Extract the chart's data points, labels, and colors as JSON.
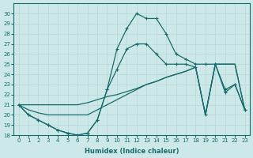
{
  "xlabel": "Humidex (Indice chaleur)",
  "ylabel": "",
  "background_color": "#cce8e8",
  "line_color": "#1a6b6b",
  "xlim": [
    -0.5,
    23.5
  ],
  "ylim": [
    18,
    31
  ],
  "yticks": [
    18,
    19,
    20,
    21,
    22,
    23,
    24,
    25,
    26,
    27,
    28,
    29,
    30
  ],
  "xticks": [
    0,
    1,
    2,
    3,
    4,
    5,
    6,
    7,
    8,
    9,
    10,
    11,
    12,
    13,
    14,
    15,
    16,
    17,
    18,
    19,
    20,
    21,
    22,
    23
  ],
  "line1": {
    "x": [
      0,
      1,
      2,
      3,
      4,
      5,
      6,
      7,
      8,
      9,
      10,
      11,
      12,
      13,
      14,
      15,
      16,
      17,
      18,
      19,
      20,
      21,
      22,
      23
    ],
    "y": [
      21,
      20,
      19.5,
      19,
      18.5,
      18.2,
      18,
      18.2,
      19.5,
      22.5,
      26.5,
      28.5,
      30,
      29.5,
      29.5,
      28,
      26,
      25.5,
      25,
      25,
      25,
      22.5,
      23,
      20.5
    ]
  },
  "line2": {
    "x": [
      0,
      1,
      2,
      3,
      4,
      5,
      6,
      7,
      8,
      9,
      10,
      11,
      12,
      13,
      14,
      15,
      16,
      17,
      18,
      19,
      20,
      21,
      22,
      23
    ],
    "y": [
      21,
      20,
      19.5,
      19,
      18.5,
      18.2,
      18,
      18.2,
      19.5,
      22.5,
      24.5,
      26.5,
      27,
      27,
      26,
      25,
      25,
      25,
      24.7,
      20,
      25,
      22.2,
      23,
      20.5
    ]
  },
  "line3": {
    "x": [
      0,
      1,
      2,
      3,
      4,
      5,
      6,
      7,
      8,
      9,
      10,
      11,
      12,
      13,
      14,
      15,
      16,
      17,
      18,
      19,
      20,
      21,
      22,
      23
    ],
    "y": [
      21,
      21,
      21,
      21,
      21,
      21,
      21,
      21.2,
      21.5,
      21.8,
      22,
      22.3,
      22.6,
      23,
      23.3,
      23.7,
      24,
      24.3,
      24.7,
      20,
      25,
      25,
      25,
      20.5
    ]
  },
  "line4": {
    "x": [
      0,
      1,
      2,
      3,
      4,
      5,
      6,
      7,
      8,
      9,
      10,
      11,
      12,
      13,
      14,
      15,
      16,
      17,
      18,
      19,
      20,
      21,
      22,
      23
    ],
    "y": [
      21,
      20.5,
      20.2,
      20,
      20,
      20,
      20,
      20,
      20.5,
      21,
      21.5,
      22,
      22.5,
      23,
      23.3,
      23.7,
      24,
      24.3,
      24.7,
      20,
      25,
      25,
      25,
      20.5
    ]
  }
}
